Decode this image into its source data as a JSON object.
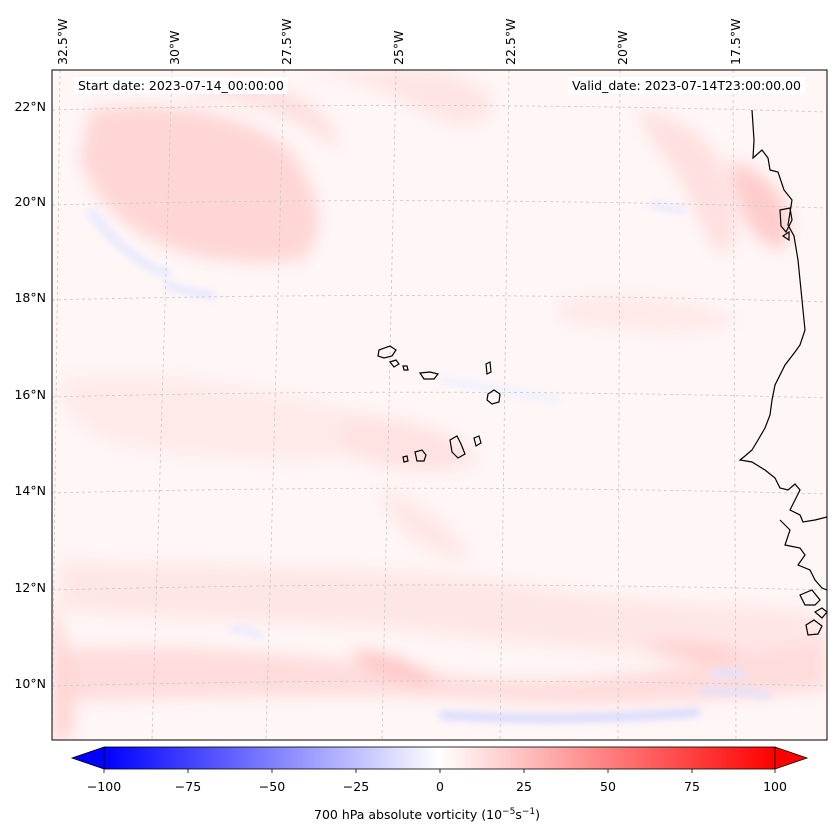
{
  "header": {
    "start_label": "Start date: 2023-07-14_00:00:00",
    "valid_label": "Valid_date: 2023-07-14T23:00:00.00"
  },
  "longitude_labels": [
    "32.5°W",
    "30°W",
    "27.5°W",
    "25°W",
    "22.5°W",
    "20°W",
    "17.5°W"
  ],
  "latitude_labels": [
    "22°N",
    "20°N",
    "18°N",
    "16°N",
    "14°N",
    "12°N",
    "10°N"
  ],
  "colorbar": {
    "ticks": [
      "−100",
      "−75",
      "−50",
      "−25",
      "0",
      "25",
      "50",
      "75",
      "100"
    ],
    "label_main": "700 hPa absolute vorticity (10",
    "label_exp1": "−5",
    "label_mid": "s",
    "label_exp2": "−1",
    "label_end": ")",
    "range": [
      -100,
      100
    ],
    "cmap": "bwr",
    "colors": {
      "min": "#0000ff",
      "mid": "#ffffff",
      "max": "#ff0000"
    }
  },
  "map": {
    "field": "700 hPa absolute vorticity",
    "lon_range": [
      -33,
      -16
    ],
    "lat_range": [
      8.8,
      22.8
    ],
    "gridlines": true,
    "coastline_color": "#000000"
  }
}
